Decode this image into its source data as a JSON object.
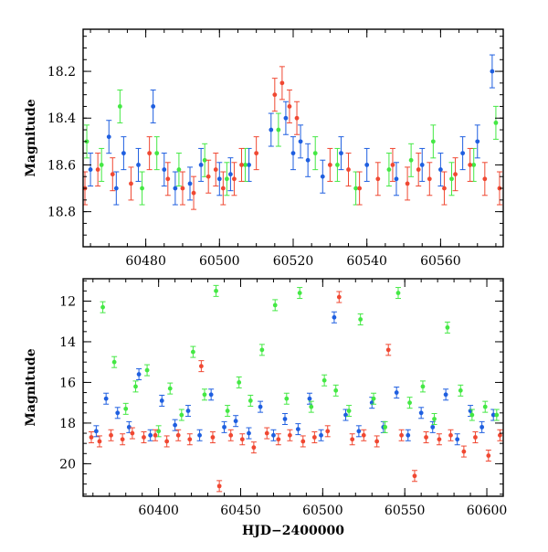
{
  "chart_data": [
    {
      "type": "scatter",
      "title": "",
      "xlabel": "",
      "ylabel": "Magnitude",
      "xlim": [
        60463,
        60577
      ],
      "ylim": [
        18.95,
        18.02
      ],
      "y_inverted": true,
      "x_ticks": [
        60480,
        60500,
        60520,
        60540,
        60560
      ],
      "y_ticks": [
        18.2,
        18.4,
        18.6,
        18.8
      ],
      "x_tick_labels": [
        "60480",
        "60500",
        "60520",
        "60540",
        "60560"
      ],
      "y_tick_labels": [
        "18.2",
        "18.4",
        "18.6",
        "18.8"
      ],
      "error_bars": true,
      "legend": "none",
      "series": [
        {
          "color": "#1f5fe0",
          "x": [
            60465,
            60470,
            60472,
            60474,
            60478,
            60482,
            60485,
            60488,
            60492,
            60495,
            60500,
            60503,
            60508,
            60514,
            60518,
            60520,
            60522,
            60524,
            60528,
            60533,
            60540,
            60548,
            60555,
            60560,
            60566,
            60570,
            60574
          ],
          "y": [
            18.62,
            18.48,
            18.7,
            18.55,
            18.6,
            18.35,
            18.62,
            18.7,
            18.68,
            18.6,
            18.66,
            18.64,
            18.6,
            18.45,
            18.4,
            18.55,
            18.5,
            18.58,
            18.65,
            18.55,
            18.6,
            18.66,
            18.6,
            18.62,
            18.55,
            18.5,
            18.2
          ]
        },
        {
          "color": "#44e844",
          "x": [
            60464,
            60468,
            60473,
            60479,
            60483,
            60489,
            60496,
            60502,
            60507,
            60516,
            60526,
            60532,
            60537,
            60546,
            60552,
            60558,
            60563,
            60569,
            60575
          ],
          "y": [
            18.5,
            18.6,
            18.35,
            18.7,
            18.55,
            18.62,
            18.58,
            18.66,
            18.6,
            18.45,
            18.55,
            18.6,
            18.7,
            18.62,
            18.58,
            18.5,
            18.66,
            18.6,
            18.42
          ]
        },
        {
          "color": "#f04832",
          "x": [
            60463.5,
            60467,
            60471,
            60476,
            60481,
            60486,
            60490,
            60493,
            60497,
            60499,
            60501,
            60504,
            60506,
            60510,
            60515,
            60517,
            60519,
            60521,
            60530,
            60535,
            60538,
            60543,
            60547,
            60551,
            60554,
            60557,
            60561,
            60564,
            60568,
            60572,
            60576
          ],
          "y": [
            18.7,
            18.62,
            18.64,
            18.68,
            18.55,
            18.66,
            18.7,
            18.72,
            18.65,
            18.62,
            18.7,
            18.66,
            18.6,
            18.55,
            18.3,
            18.25,
            18.35,
            18.4,
            18.6,
            18.62,
            18.7,
            18.66,
            18.6,
            18.68,
            18.62,
            18.66,
            18.7,
            18.64,
            18.6,
            18.66,
            18.7
          ]
        }
      ]
    },
    {
      "type": "scatter",
      "title": "",
      "xlabel": "HJD−2400000",
      "ylabel": "Magnitude",
      "xlim": [
        60354,
        60610
      ],
      "ylim": [
        21.6,
        10.9
      ],
      "y_inverted": true,
      "x_ticks": [
        60400,
        60450,
        60500,
        60550,
        60600
      ],
      "y_ticks": [
        12,
        14,
        16,
        18,
        20
      ],
      "x_tick_labels": [
        "60400",
        "60450",
        "60500",
        "60550",
        "60600"
      ],
      "y_tick_labels": [
        "12",
        "14",
        "16",
        "18",
        "20"
      ],
      "error_bars": true,
      "legend": "none",
      "series": [
        {
          "color": "#1f5fe0",
          "x": [
            60362,
            60368,
            60375,
            60382,
            60388,
            60395,
            60402,
            60410,
            60418,
            60425,
            60432,
            60440,
            60447,
            60455,
            60462,
            60470,
            60477,
            60485,
            60492,
            60499,
            60507,
            60514,
            60522,
            60530,
            60537,
            60545,
            60552,
            60560,
            60567,
            60575,
            60582,
            60590,
            60597,
            60604
          ],
          "y": [
            18.4,
            16.8,
            17.5,
            18.2,
            15.6,
            18.6,
            16.9,
            18.1,
            17.4,
            18.6,
            16.6,
            18.2,
            17.9,
            18.5,
            17.2,
            18.6,
            17.8,
            18.3,
            16.8,
            18.6,
            12.8,
            17.6,
            18.4,
            17.0,
            18.2,
            16.5,
            18.6,
            17.5,
            18.2,
            16.6,
            18.8,
            17.4,
            18.2,
            17.6
          ]
        },
        {
          "color": "#44e844",
          "x": [
            60366,
            60373,
            60380,
            60386,
            60393,
            60400,
            60407,
            60414,
            60421,
            60428,
            60435,
            60442,
            60449,
            60456,
            60463,
            60471,
            60478,
            60486,
            60493,
            60501,
            60508,
            60516,
            60523,
            60531,
            60538,
            60546,
            60553,
            60561,
            60568,
            60576,
            60584,
            60591,
            60599,
            60606
          ],
          "y": [
            12.3,
            15.0,
            17.3,
            16.2,
            15.4,
            18.4,
            16.3,
            17.6,
            14.5,
            16.6,
            11.5,
            17.4,
            16.0,
            16.9,
            14.4,
            12.2,
            16.8,
            11.6,
            17.2,
            15.9,
            16.4,
            17.4,
            12.9,
            16.8,
            18.2,
            11.6,
            17.0,
            16.2,
            17.8,
            13.3,
            16.4,
            17.6,
            17.2,
            17.6
          ]
        },
        {
          "color": "#f04832",
          "x": [
            60359,
            60364,
            60371,
            60378,
            60384,
            60391,
            60398,
            60405,
            60412,
            60419,
            60426,
            60433,
            60437,
            60444,
            60451,
            60458,
            60466,
            60473,
            60480,
            60488,
            60495,
            60503,
            60510,
            60518,
            60525,
            60533,
            60540,
            60548,
            60556,
            60563,
            60571,
            60578,
            60586,
            60593,
            60601,
            60608
          ],
          "y": [
            18.7,
            18.9,
            18.6,
            18.8,
            18.5,
            18.7,
            18.6,
            18.9,
            18.6,
            18.8,
            15.2,
            18.7,
            21.1,
            18.6,
            18.8,
            19.2,
            18.5,
            18.8,
            18.6,
            18.9,
            18.7,
            18.4,
            11.8,
            18.8,
            18.6,
            18.9,
            14.4,
            18.6,
            20.6,
            18.7,
            18.8,
            18.6,
            19.4,
            18.7,
            19.6,
            18.6
          ]
        }
      ]
    }
  ]
}
